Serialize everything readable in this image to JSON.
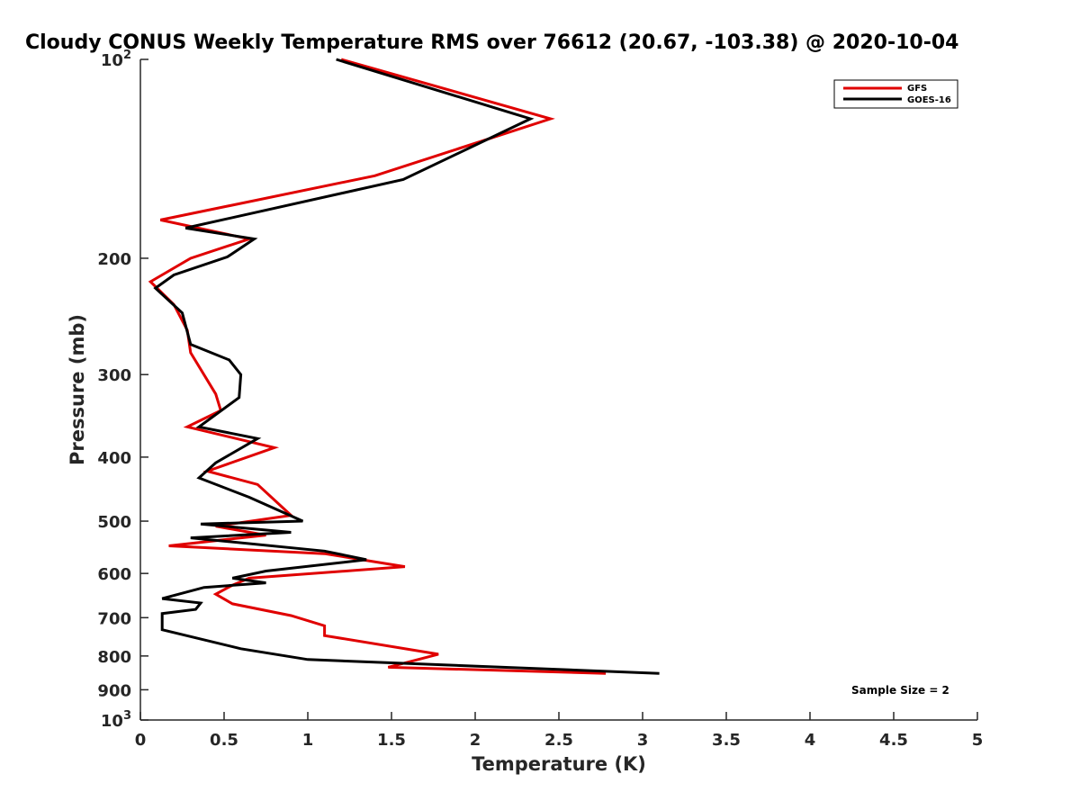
{
  "chart_data": {
    "type": "line",
    "title": "Cloudy CONUS Weekly Temperature RMS over 76612 (20.67, -103.38) @ 2020-10-04",
    "xlabel": "Temperature (K)",
    "ylabel": "Pressure (mb)",
    "xlim": [
      0,
      5
    ],
    "ylim": [
      100,
      1000
    ],
    "y_scale": "log",
    "y_direction": "reversed",
    "x_ticks": [
      "0",
      "0.5",
      "1",
      "1.5",
      "2",
      "2.5",
      "3",
      "3.5",
      "4",
      "4.5",
      "5"
    ],
    "x_tick_values": [
      0,
      0.5,
      1,
      1.5,
      2,
      2.5,
      3,
      3.5,
      4,
      4.5,
      5
    ],
    "y_ticks": [
      {
        "value": 100,
        "base": "10",
        "exp": "2"
      },
      {
        "value": 200,
        "label": "200"
      },
      {
        "value": 300,
        "label": "300"
      },
      {
        "value": 400,
        "label": "400"
      },
      {
        "value": 500,
        "label": "500"
      },
      {
        "value": 600,
        "label": "600"
      },
      {
        "value": 700,
        "label": "700"
      },
      {
        "value": 800,
        "label": "800"
      },
      {
        "value": 900,
        "label": "900"
      },
      {
        "value": 1000,
        "base": "10",
        "exp": "3"
      }
    ],
    "legend_position": "top-right",
    "series": [
      {
        "name": "GFS",
        "color": "#e00000",
        "x": [
          1.2,
          2.45,
          1.4,
          0.12,
          0.65,
          0.3,
          0.06,
          0.2,
          0.28,
          0.3,
          0.45,
          0.48,
          0.28,
          0.8,
          0.4,
          0.7,
          0.9,
          0.45,
          0.75,
          0.17,
          1.1,
          1.58,
          0.65,
          0.55,
          0.45,
          0.55,
          0.9,
          1.1,
          1.1,
          1.78,
          1.48,
          2.78
        ],
        "y": [
          100,
          123,
          150,
          175,
          187,
          200,
          217,
          235,
          257,
          278,
          321,
          340,
          360,
          387,
          420,
          440,
          490,
          509,
          525,
          545,
          560,
          586,
          610,
          625,
          645,
          667,
          695,
          720,
          745,
          795,
          832,
          850
        ]
      },
      {
        "name": "GOES-16",
        "color": "#000000",
        "x": [
          1.17,
          2.33,
          1.57,
          0.27,
          0.68,
          0.52,
          0.2,
          0.09,
          0.25,
          0.3,
          0.53,
          0.6,
          0.59,
          0.35,
          0.7,
          0.45,
          0.35,
          0.65,
          0.97,
          0.36,
          0.9,
          0.3,
          1.1,
          1.35,
          0.75,
          0.55,
          0.75,
          0.38,
          0.13,
          0.36,
          0.33,
          0.13,
          0.13,
          0.6,
          1.0,
          3.1
        ],
        "y": [
          100,
          123,
          152,
          180,
          187,
          199,
          212,
          222,
          242,
          270,
          285,
          300,
          325,
          360,
          375,
          408,
          430,
          460,
          500,
          505,
          520,
          530,
          555,
          572,
          595,
          610,
          620,
          630,
          655,
          665,
          680,
          690,
          730,
          780,
          810,
          850
        ]
      }
    ],
    "annotation": "Sample Size = 2"
  }
}
